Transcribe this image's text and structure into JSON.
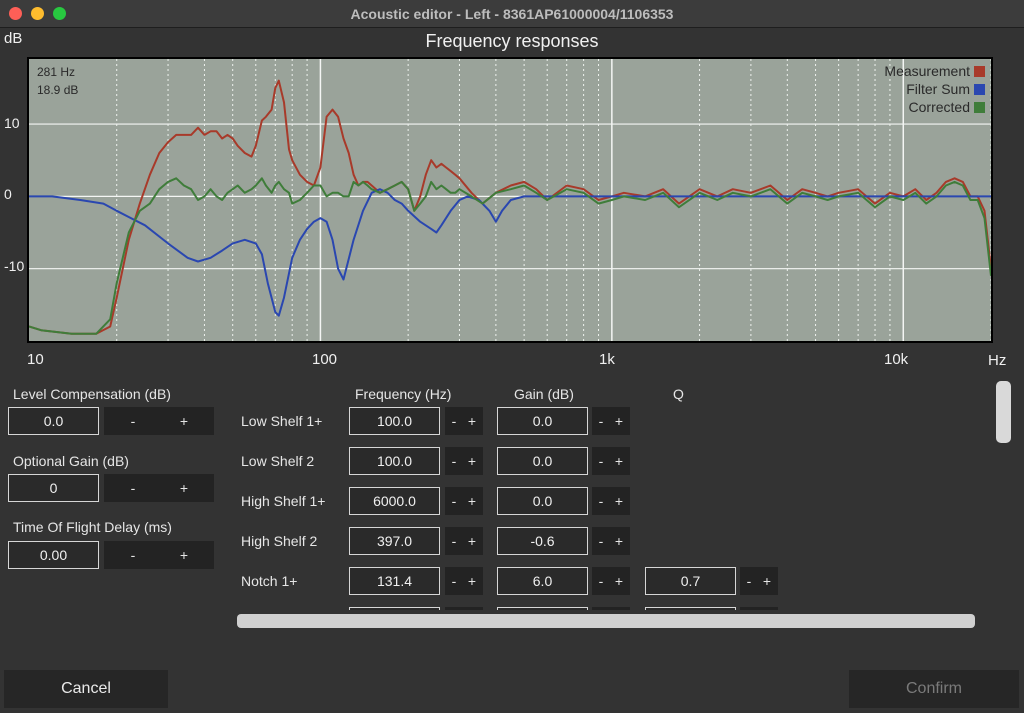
{
  "window": {
    "title": "Acoustic editor - Left - 8361AP61000004/1106353"
  },
  "chart": {
    "title": "Frequency responses",
    "y_unit": "dB",
    "x_unit": "Hz",
    "cursor": {
      "freq": "281 Hz",
      "gain": "18.9 dB"
    },
    "legend": [
      {
        "label": "Measurement",
        "color": "#a83a2a"
      },
      {
        "label": "Filter Sum",
        "color": "#2a47b0"
      },
      {
        "label": "Corrected",
        "color": "#3f7d3a"
      }
    ],
    "y_ticks": [
      "10",
      "0",
      "-10"
    ],
    "x_ticks": [
      "10",
      "100",
      "1k",
      "10k"
    ]
  },
  "chart_data": {
    "type": "line",
    "xscale": "log",
    "xlim": [
      10,
      20000
    ],
    "ylim": [
      -20,
      19
    ],
    "grid": true,
    "legend_position": "top-right",
    "series": [
      {
        "name": "Measurement",
        "color": "#a83a2a",
        "x": [
          10,
          11,
          14,
          17,
          19,
          20,
          22,
          24,
          26,
          28,
          30,
          32,
          34,
          36,
          38,
          40,
          42,
          44,
          46,
          48,
          50,
          52,
          55,
          58,
          60,
          63,
          65,
          68,
          70,
          72,
          75,
          78,
          80,
          85,
          90,
          95,
          100,
          105,
          110,
          115,
          120,
          125,
          130,
          135,
          140,
          145,
          150,
          160,
          170,
          180,
          190,
          200,
          210,
          220,
          230,
          240,
          250,
          260,
          270,
          280,
          290,
          300,
          330,
          360,
          400,
          450,
          500,
          550,
          600,
          700,
          800,
          900,
          1000,
          1100,
          1300,
          1500,
          1700,
          2000,
          2300,
          2600,
          3000,
          3500,
          4000,
          4500,
          5000,
          5500,
          6000,
          7000,
          8000,
          9000,
          10000,
          11000,
          12000,
          13000,
          14000,
          15000,
          16000,
          17000,
          18000,
          19000,
          20000
        ],
        "y": [
          -18,
          -18.5,
          -19,
          -19,
          -18,
          -14,
          -6,
          -1,
          3,
          6,
          7.5,
          8.5,
          8.5,
          8.5,
          9.5,
          8.5,
          9,
          9,
          8,
          8.5,
          8,
          7,
          6,
          5.5,
          7,
          10.5,
          11,
          12,
          15,
          16,
          13,
          6.5,
          5,
          3,
          2,
          1.5,
          4,
          11,
          12,
          11,
          8,
          6,
          3,
          1.5,
          2,
          2,
          1.5,
          0.5,
          1,
          1.5,
          2,
          1,
          -2,
          0,
          3,
          5,
          4,
          4.5,
          4,
          3.5,
          3,
          2.5,
          0.5,
          -1,
          0.5,
          1.5,
          2,
          1,
          -0.5,
          1.5,
          1,
          -0.5,
          0,
          0.5,
          0,
          1,
          -1,
          1,
          0,
          1,
          0.5,
          1.5,
          -0.5,
          1,
          0.5,
          0,
          0.5,
          1,
          -1,
          0.5,
          0,
          1,
          -0.5,
          0.5,
          2,
          2.5,
          2,
          0,
          0,
          -2,
          -10
        ]
      },
      {
        "name": "Filter Sum",
        "color": "#2a47b0",
        "x": [
          10,
          12,
          15,
          18,
          20,
          25,
          30,
          35,
          38,
          42,
          46,
          50,
          55,
          60,
          63,
          66,
          70,
          72,
          75,
          80,
          85,
          90,
          95,
          100,
          105,
          110,
          115,
          120,
          130,
          140,
          150,
          160,
          170,
          180,
          190,
          200,
          220,
          240,
          250,
          260,
          280,
          300,
          320,
          350,
          380,
          400,
          420,
          450,
          500,
          600,
          800,
          1000,
          2000,
          5000,
          10000,
          20000
        ],
        "y": [
          0,
          0,
          -0.5,
          -1,
          -2,
          -4,
          -6.5,
          -8.5,
          -9,
          -8.5,
          -7.5,
          -6.5,
          -6,
          -6.5,
          -8,
          -12,
          -16,
          -16.5,
          -14,
          -8.5,
          -6,
          -4.5,
          -3.5,
          -3,
          -3.5,
          -6,
          -10,
          -11.5,
          -6,
          -2,
          0.5,
          1,
          0.5,
          -0.5,
          -1,
          -2,
          -3.5,
          -4.5,
          -5,
          -4,
          -2,
          -0.5,
          0,
          -0.5,
          -2,
          -3.5,
          -2,
          -0.5,
          0,
          0,
          0,
          0,
          0,
          0,
          0,
          0
        ]
      },
      {
        "name": "Corrected",
        "color": "#3f7d3a",
        "x": [
          10,
          11,
          14,
          17,
          19,
          20,
          22,
          24,
          26,
          28,
          30,
          32,
          34,
          36,
          38,
          40,
          42,
          44,
          46,
          48,
          50,
          52,
          55,
          58,
          60,
          63,
          65,
          68,
          70,
          72,
          75,
          78,
          80,
          85,
          90,
          95,
          100,
          105,
          110,
          115,
          120,
          125,
          130,
          135,
          140,
          145,
          150,
          160,
          170,
          180,
          190,
          200,
          210,
          220,
          230,
          240,
          250,
          260,
          270,
          280,
          290,
          300,
          330,
          360,
          400,
          450,
          500,
          550,
          600,
          700,
          800,
          900,
          1000,
          1100,
          1300,
          1500,
          1700,
          2000,
          2300,
          2600,
          3000,
          3500,
          4000,
          4500,
          5000,
          5500,
          6000,
          7000,
          8000,
          9000,
          10000,
          11000,
          12000,
          13000,
          14000,
          15000,
          16000,
          17000,
          18000,
          19000,
          20000
        ],
        "y": [
          -18,
          -18.5,
          -19,
          -19,
          -17,
          -12,
          -5,
          -2,
          -1,
          1,
          2,
          2.5,
          1.5,
          1,
          -0.5,
          0,
          1,
          0,
          -0.5,
          0.5,
          1,
          1.5,
          0.5,
          1,
          1.5,
          2.5,
          1.5,
          0.5,
          1.5,
          2,
          1,
          0.5,
          -1,
          -0.5,
          0.5,
          1.5,
          1.5,
          0,
          0.5,
          0.5,
          0,
          0,
          2,
          1.5,
          2,
          1.5,
          1,
          0.5,
          1,
          1.5,
          2,
          1,
          -2,
          -1,
          0,
          2,
          1,
          1.5,
          1,
          0.5,
          0.5,
          1,
          0,
          -1,
          0.5,
          1,
          1.5,
          0.5,
          -0.5,
          1,
          0.5,
          -1,
          -0.5,
          0,
          -0.5,
          0.5,
          -1.5,
          0.5,
          -0.5,
          0.5,
          0,
          1,
          -1,
          0.5,
          0,
          -0.5,
          0,
          0.5,
          -1.5,
          0,
          -0.5,
          0.5,
          -1,
          0,
          1.5,
          2,
          1.5,
          -0.5,
          -0.5,
          -3,
          -11
        ]
      }
    ]
  },
  "left_panel": {
    "level_comp": {
      "label": "Level Compensation (dB)",
      "value": "0.0",
      "minus": "-",
      "plus": "+"
    },
    "optional_gain": {
      "label": "Optional Gain (dB)",
      "value": "0",
      "minus": "-",
      "plus": "+"
    },
    "tof_delay": {
      "label": "Time Of Flight Delay (ms)",
      "value": "0.00",
      "minus": "-",
      "plus": "+"
    }
  },
  "filters": {
    "headers": {
      "frequency": "Frequency (Hz)",
      "gain": "Gain (dB)",
      "q": "Q"
    },
    "rows": [
      {
        "name": "Low Shelf 1+",
        "freq": "100.0",
        "gain": "0.0",
        "q": "",
        "minus": "-",
        "plus": "+"
      },
      {
        "name": "Low Shelf 2",
        "freq": "100.0",
        "gain": "0.0",
        "q": "",
        "minus": "-",
        "plus": "+"
      },
      {
        "name": "High Shelf 1+",
        "freq": "6000.0",
        "gain": "0.0",
        "q": "",
        "minus": "-",
        "plus": "+"
      },
      {
        "name": "High Shelf 2",
        "freq": "397.0",
        "gain": "-0.6",
        "q": "",
        "minus": "-",
        "plus": "+"
      },
      {
        "name": "Notch 1+",
        "freq": "131.4",
        "gain": "6.0",
        "q": "0.7",
        "minus": "-",
        "plus": "+"
      }
    ]
  },
  "footer": {
    "cancel": "Cancel",
    "confirm": "Confirm"
  }
}
